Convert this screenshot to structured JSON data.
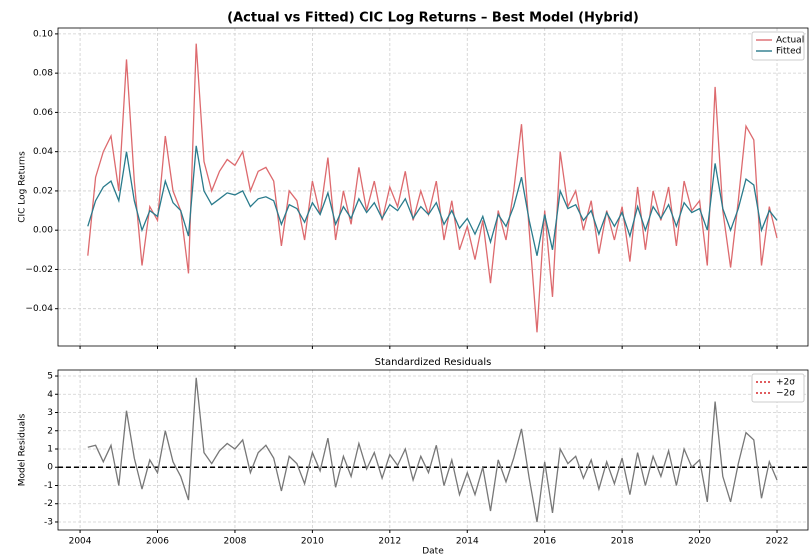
{
  "chart_data": [
    {
      "type": "line",
      "title": "(Actual vs Fitted) CIC Log Returns – Best Model (Hybrid)",
      "y_label": "CIC Log Returns",
      "x": [
        2004.2,
        2004.4,
        2004.6,
        2004.8,
        2005.0,
        2005.2,
        2005.4,
        2005.6,
        2005.8,
        2006.0,
        2006.2,
        2006.4,
        2006.6,
        2006.8,
        2007.0,
        2007.2,
        2007.4,
        2007.6,
        2007.8,
        2008.0,
        2008.2,
        2008.4,
        2008.6,
        2008.8,
        2009.0,
        2009.2,
        2009.4,
        2009.6,
        2009.8,
        2010.0,
        2010.2,
        2010.4,
        2010.6,
        2010.8,
        2011.0,
        2011.2,
        2011.4,
        2011.6,
        2011.8,
        2012.0,
        2012.2,
        2012.4,
        2012.6,
        2012.8,
        2013.0,
        2013.2,
        2013.4,
        2013.6,
        2013.8,
        2014.0,
        2014.2,
        2014.4,
        2014.6,
        2014.8,
        2015.0,
        2015.2,
        2015.4,
        2015.6,
        2015.8,
        2016.0,
        2016.2,
        2016.4,
        2016.6,
        2016.8,
        2017.0,
        2017.2,
        2017.4,
        2017.6,
        2017.8,
        2018.0,
        2018.2,
        2018.4,
        2018.6,
        2018.8,
        2019.0,
        2019.2,
        2019.4,
        2019.6,
        2019.8,
        2020.0,
        2020.2,
        2020.4,
        2020.6,
        2020.8,
        2021.0,
        2021.2,
        2021.4,
        2021.6,
        2021.8,
        2022.0
      ],
      "series": [
        {
          "name": "Actual",
          "color": "#dd6a6e",
          "values": [
            -0.013,
            0.027,
            0.04,
            0.048,
            0.02,
            0.087,
            0.025,
            -0.018,
            0.012,
            0.005,
            0.048,
            0.02,
            0.01,
            -0.022,
            0.095,
            0.035,
            0.02,
            0.03,
            0.036,
            0.033,
            0.04,
            0.02,
            0.03,
            0.032,
            0.025,
            -0.008,
            0.02,
            0.015,
            -0.005,
            0.025,
            0.008,
            0.037,
            -0.005,
            0.02,
            0.003,
            0.032,
            0.01,
            0.025,
            0.005,
            0.022,
            0.012,
            0.03,
            0.005,
            0.02,
            0.008,
            0.025,
            -0.005,
            0.015,
            -0.01,
            0.002,
            -0.015,
            0.005,
            -0.027,
            0.01,
            -0.005,
            0.02,
            0.054,
            0.0,
            -0.052,
            0.01,
            -0.034,
            0.04,
            0.012,
            0.02,
            0.0,
            0.015,
            -0.012,
            0.01,
            -0.005,
            0.012,
            -0.016,
            0.022,
            -0.01,
            0.02,
            0.005,
            0.022,
            -0.008,
            0.025,
            0.01,
            0.015,
            -0.018,
            0.073,
            0.01,
            -0.019,
            0.015,
            0.053,
            0.046,
            -0.018,
            0.012,
            -0.004
          ]
        },
        {
          "name": "Fitted",
          "color": "#2a7b8c",
          "values": [
            0.002,
            0.015,
            0.022,
            0.025,
            0.015,
            0.04,
            0.015,
            0.0,
            0.01,
            0.007,
            0.025,
            0.014,
            0.01,
            -0.003,
            0.043,
            0.02,
            0.013,
            0.016,
            0.019,
            0.018,
            0.02,
            0.012,
            0.016,
            0.017,
            0.015,
            0.003,
            0.013,
            0.011,
            0.004,
            0.014,
            0.008,
            0.019,
            0.003,
            0.012,
            0.006,
            0.016,
            0.009,
            0.014,
            0.006,
            0.013,
            0.01,
            0.016,
            0.006,
            0.012,
            0.008,
            0.014,
            0.003,
            0.01,
            0.001,
            0.006,
            -0.002,
            0.007,
            -0.006,
            0.008,
            0.002,
            0.012,
            0.027,
            0.005,
            -0.013,
            0.008,
            -0.01,
            0.02,
            0.011,
            0.013,
            0.005,
            0.01,
            -0.002,
            0.009,
            0.002,
            0.009,
            -0.003,
            0.012,
            0.0,
            0.012,
            0.006,
            0.013,
            0.002,
            0.014,
            0.009,
            0.011,
            0.0,
            0.034,
            0.011,
            0.0,
            0.011,
            0.026,
            0.023,
            0.0,
            0.01,
            0.005
          ]
        }
      ],
      "xlim": [
        2003.43,
        2022.8
      ],
      "ylim": [
        -0.059,
        0.103
      ],
      "yticks": [
        {
          "value": -0.04,
          "label": "−0.04"
        },
        {
          "value": -0.02,
          "label": "−0.02"
        },
        {
          "value": 0,
          "label": "0.00"
        },
        {
          "value": 0.02,
          "label": "0.02"
        },
        {
          "value": 0.04,
          "label": "0.04"
        },
        {
          "value": 0.06,
          "label": "0.06"
        },
        {
          "value": 0.08,
          "label": "0.08"
        },
        {
          "value": 0.1,
          "label": "0.10"
        }
      ],
      "grid": true,
      "legend": "upper right"
    },
    {
      "type": "line",
      "title": "Standardized Residuals",
      "x_label": "Date",
      "y_label": "Model Residuals",
      "x": [
        2004.2,
        2004.4,
        2004.6,
        2004.8,
        2005.0,
        2005.2,
        2005.4,
        2005.6,
        2005.8,
        2006.0,
        2006.2,
        2006.4,
        2006.6,
        2006.8,
        2007.0,
        2007.2,
        2007.4,
        2007.6,
        2007.8,
        2008.0,
        2008.2,
        2008.4,
        2008.6,
        2008.8,
        2009.0,
        2009.2,
        2009.4,
        2009.6,
        2009.8,
        2010.0,
        2010.2,
        2010.4,
        2010.6,
        2010.8,
        2011.0,
        2011.2,
        2011.4,
        2011.6,
        2011.8,
        2012.0,
        2012.2,
        2012.4,
        2012.6,
        2012.8,
        2013.0,
        2013.2,
        2013.4,
        2013.6,
        2013.8,
        2014.0,
        2014.2,
        2014.4,
        2014.6,
        2014.8,
        2015.0,
        2015.2,
        2015.4,
        2015.6,
        2015.8,
        2016.0,
        2016.2,
        2016.4,
        2016.6,
        2016.8,
        2017.0,
        2017.2,
        2017.4,
        2017.6,
        2017.8,
        2018.0,
        2018.2,
        2018.4,
        2018.6,
        2018.8,
        2019.0,
        2019.2,
        2019.4,
        2019.6,
        2019.8,
        2020.0,
        2020.2,
        2020.4,
        2020.6,
        2020.8,
        2021.0,
        2021.2,
        2021.4,
        2021.6,
        2021.8,
        2022.0
      ],
      "series": [
        {
          "color": "#777777",
          "values": [
            1.1,
            1.2,
            0.3,
            1.2,
            -1.0,
            3.1,
            0.5,
            -1.2,
            0.4,
            -0.3,
            2.0,
            0.3,
            -0.5,
            -1.8,
            4.9,
            0.8,
            0.2,
            0.9,
            1.3,
            1.0,
            1.5,
            -0.3,
            0.8,
            1.2,
            0.5,
            -1.3,
            0.6,
            0.2,
            -0.9,
            0.8,
            -0.2,
            1.6,
            -1.1,
            0.6,
            -0.5,
            1.3,
            -0.1,
            0.8,
            -0.6,
            0.7,
            0.1,
            1.0,
            -0.7,
            0.6,
            -0.3,
            1.2,
            -1.0,
            0.4,
            -1.5,
            -0.3,
            -1.5,
            0.0,
            -2.4,
            0.4,
            -0.8,
            0.5,
            2.1,
            -0.6,
            -3.0,
            0.3,
            -2.5,
            1.0,
            0.2,
            0.6,
            -0.6,
            0.4,
            -1.2,
            0.3,
            -0.9,
            0.5,
            -1.5,
            0.8,
            -1.0,
            0.6,
            -0.5,
            0.9,
            -1.0,
            1.0,
            0.0,
            0.4,
            -1.9,
            3.6,
            -0.5,
            -1.9,
            0.2,
            1.9,
            1.5,
            -1.7,
            0.3,
            -0.7
          ]
        }
      ],
      "reference_lines": [
        {
          "name": "+2σ",
          "color": "#d62728"
        },
        {
          "name": "−2σ",
          "color": "#d62728"
        }
      ],
      "hline": {
        "value": 0,
        "color": "#000000"
      },
      "xlim": [
        2003.43,
        2022.8
      ],
      "ylim": [
        -3.44,
        5.33
      ],
      "xticks": [
        2004,
        2006,
        2008,
        2010,
        2012,
        2014,
        2016,
        2018,
        2020,
        2022
      ],
      "yticks": [
        -3,
        -2,
        -1,
        0,
        1,
        2,
        3,
        4,
        5
      ],
      "grid": true,
      "legend": "upper right"
    }
  ]
}
